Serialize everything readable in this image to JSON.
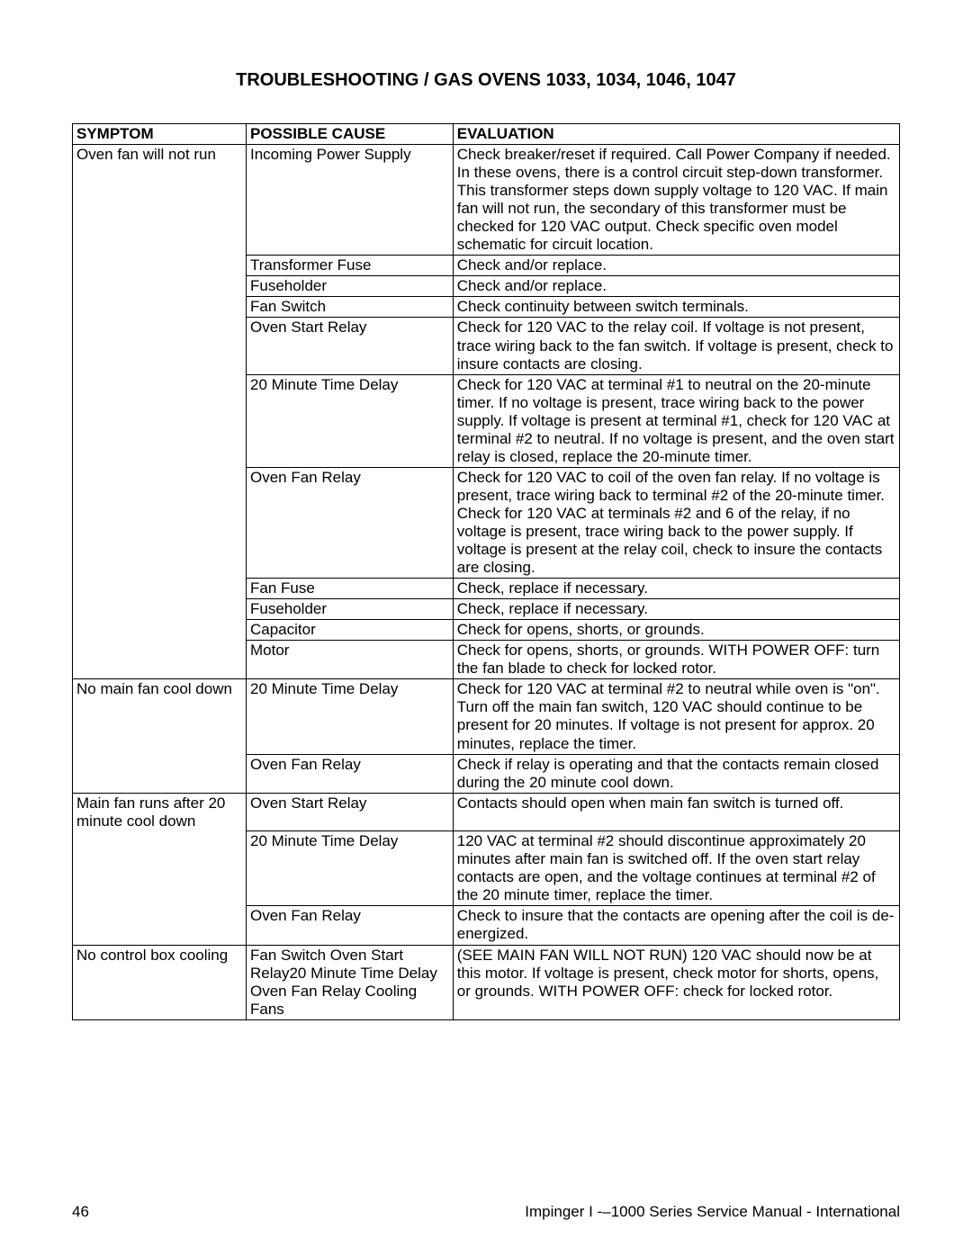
{
  "title": "TROUBLESHOOTING / GAS OVENS 1033, 1034, 1046, 1047",
  "headers": {
    "symptom": "SYMPTOM",
    "cause": "POSSIBLE CAUSE",
    "evaluation": "EVALUATION"
  },
  "rows": [
    {
      "symptom": "Oven fan will not run",
      "symptom_rowspan": 11,
      "cause": "Incoming Power Supply",
      "eval": "Check breaker/reset if required. Call Power Company if needed. In these ovens, there is a control circuit step-down transformer. This transformer steps down supply voltage to 120 VAC. If main fan will not run, the secondary of this transformer must be checked for 120 VAC output. Check specific oven model schematic for circuit location."
    },
    {
      "cause": "Transformer Fuse",
      "eval": "Check and/or replace."
    },
    {
      "cause": "Fuseholder",
      "eval": "Check and/or replace."
    },
    {
      "cause": "Fan Switch",
      "eval": "Check continuity between switch terminals."
    },
    {
      "cause": "Oven Start Relay",
      "eval": "Check for 120 VAC to the relay coil. If voltage is not present, trace wiring back to the fan switch. If voltage is present, check to insure contacts are closing."
    },
    {
      "cause": "20 Minute Time Delay",
      "eval": "Check for 120 VAC at terminal #1 to neutral on the 20-minute timer. If no voltage is present, trace wiring back to the power supply. If voltage is present at terminal #1, check for 120 VAC at terminal #2 to neutral. If no voltage is present, and the oven start relay is closed, replace the 20-minute timer."
    },
    {
      "cause": "Oven Fan Relay",
      "eval": "Check for 120 VAC to coil of the oven fan relay. If no voltage is present, trace wiring back to terminal #2 of the 20-minute timer. Check for 120 VAC at terminals #2 and 6 of the relay, if no voltage is present, trace wiring back to the power supply. If voltage is present at the relay coil, check to insure the contacts are closing."
    },
    {
      "cause": "Fan Fuse",
      "eval": "Check, replace if necessary."
    },
    {
      "cause": "Fuseholder",
      "eval": "Check, replace if necessary."
    },
    {
      "cause": "Capacitor",
      "eval": "Check for opens, shorts, or grounds."
    },
    {
      "cause": "Motor",
      "eval": "Check for opens, shorts, or grounds. WITH POWER OFF: turn the fan blade to check for locked rotor."
    },
    {
      "symptom": "No main fan cool down",
      "symptom_rowspan": 2,
      "cause": "20 Minute Time Delay",
      "eval": "Check for 120 VAC at terminal #2 to neutral while oven is \"on\". Turn off the main fan switch, 120 VAC should continue to be present for 20 minutes. If voltage is not present for approx. 20 minutes, replace the timer."
    },
    {
      "cause": "Oven Fan Relay",
      "eval": "Check if relay is operating and that the contacts remain closed during the 20 minute cool down."
    },
    {
      "symptom": "Main fan runs after 20 minute cool down",
      "symptom_rowspan": 3,
      "cause": "Oven Start Relay",
      "eval": "Contacts should open when main fan switch is turned off."
    },
    {
      "cause": "20 Minute Time Delay",
      "eval": "120 VAC at terminal #2 should discontinue approximately 20 minutes after main fan is switched off. If the oven start relay contacts are open, and the voltage continues at terminal #2 of the 20 minute timer, replace the timer."
    },
    {
      "cause": "Oven Fan Relay",
      "eval": "Check to insure that the contacts are opening after the coil is de-energized."
    },
    {
      "symptom": "No control box cooling",
      "symptom_rowspan": 1,
      "cause": "Fan Switch Oven Start Relay20 Minute Time Delay Oven Fan Relay Cooling Fans",
      "eval": "(SEE MAIN FAN WILL NOT RUN) 120 VAC should now be at this motor. If voltage is present, check motor for shorts, opens, or grounds. WITH POWER OFF: check for locked rotor."
    }
  ],
  "footer": {
    "page": "46",
    "doc": "Impinger I -–1000 Series Service Manual - International"
  }
}
